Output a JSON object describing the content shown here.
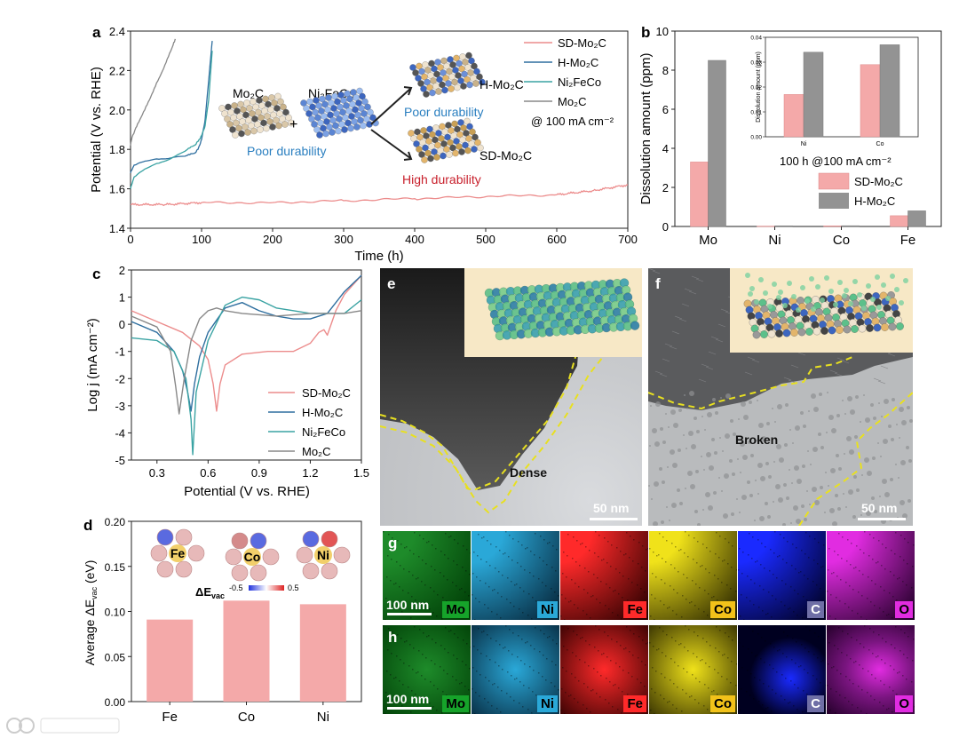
{
  "panels": {
    "a": {
      "label": "a",
      "ylabel": "Potential (V vs. RHE)",
      "xlabel": "Time (h)",
      "yticks": [
        "1.4",
        "1.6",
        "1.8",
        "2.0",
        "2.2",
        "2.4"
      ],
      "xticks": [
        "0",
        "100",
        "200",
        "300",
        "400",
        "500",
        "600",
        "700"
      ],
      "legend": [
        "SD-Mo₂C",
        "H-Mo₂C",
        "Ni₂FeCo",
        "Mo₂C"
      ],
      "condition": "@ 100 mA cm⁻²",
      "schematic": {
        "mo2c": "Mo₂C",
        "plus": "+",
        "ni2feco": "Ni₂FeCo",
        "poor1": "Poor durability",
        "hmo2c": "H-Mo₂C",
        "poor2": "Poor durability",
        "sdmo2c": "SD-Mo₂C",
        "high": "High durability"
      }
    },
    "b": {
      "label": "b",
      "ylabel": "Dissolution amount (ppm)",
      "yticks": [
        "0",
        "2",
        "4",
        "6",
        "8",
        "10"
      ],
      "categories": [
        "Mo",
        "Ni",
        "Co",
        "Fe"
      ],
      "legend": [
        "SD-Mo₂C",
        "H-Mo₂C"
      ],
      "condition": "100 h @100 mA cm⁻²",
      "inset": {
        "ylabel": "Dissolution amount (ppm)",
        "yticks": [
          "0.00",
          "0.01",
          "0.02",
          "0.03",
          "0.04"
        ],
        "categories": [
          "Ni",
          "Co"
        ]
      }
    },
    "c": {
      "label": "c",
      "ylabel": "Log j (mA cm⁻²)",
      "xlabel": "Potential (V vs. RHE)",
      "yticks": [
        "-5",
        "-4",
        "-3",
        "-2",
        "-1",
        "0",
        "1",
        "2"
      ],
      "xticks": [
        "0.3",
        "0.6",
        "0.9",
        "1.2",
        "1.5"
      ],
      "legend": [
        "SD-Mo₂C",
        "H-Mo₂C",
        "Ni₂FeCo",
        "Mo₂C"
      ]
    },
    "d": {
      "label": "d",
      "ylabel": "Average ΔE",
      "ylabel_sub": "vac",
      "ylabel_unit": " (eV)",
      "yticks": [
        "0.00",
        "0.05",
        "0.10",
        "0.15",
        "0.20"
      ],
      "categories": [
        "Fe",
        "Co",
        "Ni"
      ],
      "scale_label": "ΔE",
      "scale_sub": "vac",
      "scale_min": "-0.5",
      "scale_max": "0.5"
    },
    "e": {
      "label": "e",
      "annotation": "Dense",
      "scalebar": "50 nm"
    },
    "f": {
      "label": "f",
      "annotation": "Broken",
      "scalebar": "50 nm"
    },
    "g": {
      "label": "g",
      "scalebar": "100 nm",
      "elements": [
        "Mo",
        "Ni",
        "Fe",
        "Co",
        "C",
        "O"
      ]
    },
    "h": {
      "label": "h",
      "scalebar": "100 nm",
      "elements": [
        "Mo",
        "Ni",
        "Fe",
        "Co",
        "C",
        "O"
      ]
    }
  },
  "chart_data": [
    {
      "panel": "a",
      "type": "line",
      "title": "",
      "xlabel": "Time (h)",
      "ylabel": "Potential (V vs. RHE)",
      "xlim": [
        0,
        700
      ],
      "ylim": [
        1.4,
        2.4
      ],
      "series": [
        {
          "name": "SD-Mo2C",
          "color": "#ec8c8c",
          "x": [
            0,
            50,
            100,
            200,
            300,
            400,
            500,
            600,
            650,
            700
          ],
          "y": [
            1.52,
            1.52,
            1.53,
            1.53,
            1.54,
            1.55,
            1.56,
            1.57,
            1.59,
            1.62
          ]
        },
        {
          "name": "H-Mo2C",
          "color": "#2f6f9f",
          "x": [
            0,
            5,
            20,
            40,
            60,
            80,
            90,
            95,
            100,
            105,
            110,
            115
          ],
          "y": [
            1.68,
            1.72,
            1.74,
            1.75,
            1.76,
            1.77,
            1.78,
            1.8,
            1.85,
            1.95,
            2.15,
            2.35
          ]
        },
        {
          "name": "Ni2FeCo",
          "color": "#3aa3a3",
          "x": [
            0,
            5,
            20,
            40,
            60,
            80,
            90,
            95,
            100,
            105,
            110,
            115
          ],
          "y": [
            1.6,
            1.66,
            1.7,
            1.73,
            1.76,
            1.8,
            1.82,
            1.84,
            1.87,
            1.92,
            2.05,
            2.3
          ]
        },
        {
          "name": "Mo2C",
          "color": "#888888",
          "x": [
            0,
            2,
            10,
            20,
            30,
            40,
            50,
            60,
            63
          ],
          "y": [
            1.82,
            1.86,
            1.93,
            2.0,
            2.08,
            2.16,
            2.24,
            2.33,
            2.36
          ]
        }
      ]
    },
    {
      "panel": "b",
      "type": "bar",
      "title": "",
      "ylabel": "Dissolution amount (ppm)",
      "ylim": [
        0,
        10
      ],
      "categories": [
        "Mo",
        "Ni",
        "Co",
        "Fe"
      ],
      "series": [
        {
          "name": "SD-Mo2C",
          "color": "#f4a9a9",
          "values": [
            3.3,
            0.017,
            0.029,
            0.55
          ]
        },
        {
          "name": "H-Mo2C",
          "color": "#939393",
          "values": [
            8.5,
            0.034,
            0.037,
            0.8
          ]
        }
      ],
      "inset": {
        "type": "bar",
        "ylim": [
          0,
          0.04
        ],
        "categories": [
          "Ni",
          "Co"
        ],
        "series": [
          {
            "name": "SD-Mo2C",
            "values": [
              0.017,
              0.029
            ]
          },
          {
            "name": "H-Mo2C",
            "values": [
              0.034,
              0.037
            ]
          }
        ]
      }
    },
    {
      "panel": "c",
      "type": "line",
      "title": "",
      "xlabel": "Potential (V vs. RHE)",
      "ylabel": "Log j (mA cm-2)",
      "xlim": [
        0.15,
        1.5
      ],
      "ylim": [
        -5,
        2
      ],
      "series": [
        {
          "name": "SD-Mo2C",
          "color": "#ec8c8c",
          "x": [
            0.15,
            0.3,
            0.45,
            0.55,
            0.6,
            0.63,
            0.65,
            0.67,
            0.7,
            0.8,
            0.95,
            1.1,
            1.2,
            1.25,
            1.28,
            1.3,
            1.35,
            1.4,
            1.5
          ],
          "y": [
            0.5,
            0.1,
            -0.3,
            -0.8,
            -1.3,
            -2.2,
            -3.2,
            -2.2,
            -1.5,
            -1.1,
            -1.0,
            -1.0,
            -0.7,
            -0.3,
            -0.2,
            -0.4,
            0.5,
            1.1,
            1.8
          ]
        },
        {
          "name": "H-Mo2C",
          "color": "#2f6f9f",
          "x": [
            0.15,
            0.3,
            0.4,
            0.45,
            0.48,
            0.5,
            0.52,
            0.55,
            0.6,
            0.7,
            0.8,
            0.9,
            1.0,
            1.1,
            1.2,
            1.3,
            1.4,
            1.5
          ],
          "y": [
            0.1,
            -0.3,
            -1.0,
            -1.7,
            -2.5,
            -3.2,
            -2.2,
            -1.2,
            -0.3,
            0.6,
            0.8,
            0.5,
            0.3,
            0.2,
            0.2,
            0.4,
            1.2,
            1.8
          ]
        },
        {
          "name": "Ni2FeCo",
          "color": "#3aa3a3",
          "x": [
            0.15,
            0.3,
            0.4,
            0.47,
            0.5,
            0.51,
            0.53,
            0.6,
            0.7,
            0.8,
            0.9,
            1.0,
            1.1,
            1.2,
            1.3,
            1.4,
            1.5
          ],
          "y": [
            -0.5,
            -0.6,
            -1.0,
            -2.0,
            -3.5,
            -4.8,
            -2.5,
            -0.6,
            0.7,
            1.0,
            0.9,
            0.6,
            0.5,
            0.4,
            0.4,
            0.4,
            0.9
          ]
        },
        {
          "name": "Mo2C",
          "color": "#888888",
          "x": [
            0.15,
            0.3,
            0.38,
            0.41,
            0.43,
            0.46,
            0.5,
            0.55,
            0.6,
            0.65,
            0.7,
            0.8,
            1.0,
            1.2,
            1.4,
            1.5
          ],
          "y": [
            0.3,
            -0.1,
            -1.0,
            -2.3,
            -3.3,
            -2.0,
            -0.6,
            0.2,
            0.5,
            0.6,
            0.5,
            0.4,
            0.3,
            0.4,
            0.4,
            0.5
          ]
        }
      ]
    },
    {
      "panel": "d",
      "type": "bar",
      "title": "",
      "ylabel": "Average ΔEvac (eV)",
      "ylim": [
        0,
        0.2
      ],
      "categories": [
        "Fe",
        "Co",
        "Ni"
      ],
      "values": [
        0.091,
        0.112,
        0.108
      ],
      "color": "#f4a9a9"
    }
  ]
}
